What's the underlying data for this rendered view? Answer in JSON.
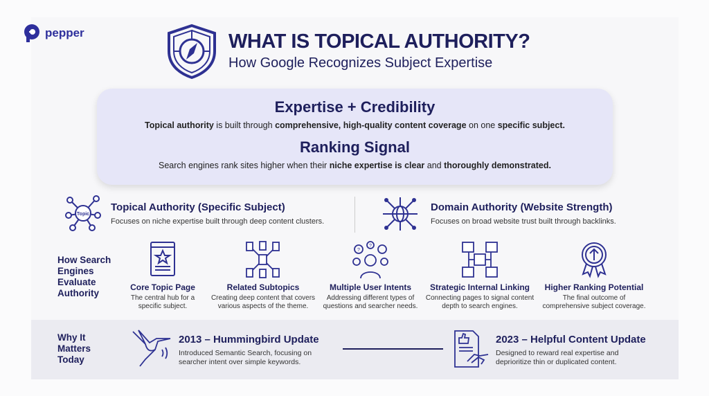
{
  "brand": {
    "name": "pepper",
    "color": "#2e2f9c"
  },
  "header": {
    "title": "WHAT IS TOPICAL AUTHORITY?",
    "subtitle": "How Google Recognizes Subject Expertise",
    "icon": "shield-compass-icon"
  },
  "summary": {
    "heading1": "Expertise + Credibility",
    "line1": [
      {
        "t": "Topical authority",
        "b": true
      },
      {
        "t": " is built through ",
        "b": false
      },
      {
        "t": "comprehensive, high-quality content coverage",
        "b": true
      },
      {
        "t": " on one ",
        "b": false
      },
      {
        "t": "specific subject.",
        "b": true
      }
    ],
    "heading2": "Ranking Signal",
    "line2": [
      {
        "t": "Search engines rank sites higher when their ",
        "b": false
      },
      {
        "t": "niche expertise is clear",
        "b": true
      },
      {
        "t": " and ",
        "b": false
      },
      {
        "t": "thoroughly demonstrated.",
        "b": true
      }
    ]
  },
  "comparison": [
    {
      "title": "Topical Authority (Specific Subject)",
      "desc": "Focuses on niche expertise built through deep content clusters.",
      "icon": "topic-network-icon",
      "icon_label": "Topic"
    },
    {
      "title": "Domain Authority (Website Strength)",
      "desc": "Focuses on broad website trust built through backlinks.",
      "icon": "globe-links-icon"
    }
  ],
  "evaluate": {
    "label": "How Search Engines Evaluate Authority",
    "steps": [
      {
        "title": "Core Topic Page",
        "desc": "The central hub for a specific subject.",
        "icon": "star-page-icon"
      },
      {
        "title": "Related Subtopics",
        "desc": "Creating deep content that covers various aspects of the theme.",
        "icon": "document-cluster-icon"
      },
      {
        "title": "Multiple User Intents",
        "desc": "Addressing different types of questions and searcher needs.",
        "icon": "user-questions-icon"
      },
      {
        "title": "Strategic Internal Linking",
        "desc": "Connecting pages to signal content depth to search engines.",
        "icon": "linked-pages-icon"
      },
      {
        "title": "Higher Ranking Potential",
        "desc": "The final outcome of comprehensive subject coverage.",
        "icon": "award-arrow-icon"
      }
    ]
  },
  "why": {
    "label": "Why It Matters Today",
    "updates": [
      {
        "title": "2013 – Hummingbird Update",
        "desc": "Introduced Semantic Search, focusing on searcher intent over simple keywords.",
        "icon": "hummingbird-icon"
      },
      {
        "title": "2023 – Helpful Content Update",
        "desc": "Designed to reward real expertise and deprioritize thin or duplicated content.",
        "icon": "document-handshake-icon"
      }
    ]
  },
  "colors": {
    "navy": "#1e1f5c",
    "box": "#e6e6f8",
    "band": "#ebebf1"
  }
}
